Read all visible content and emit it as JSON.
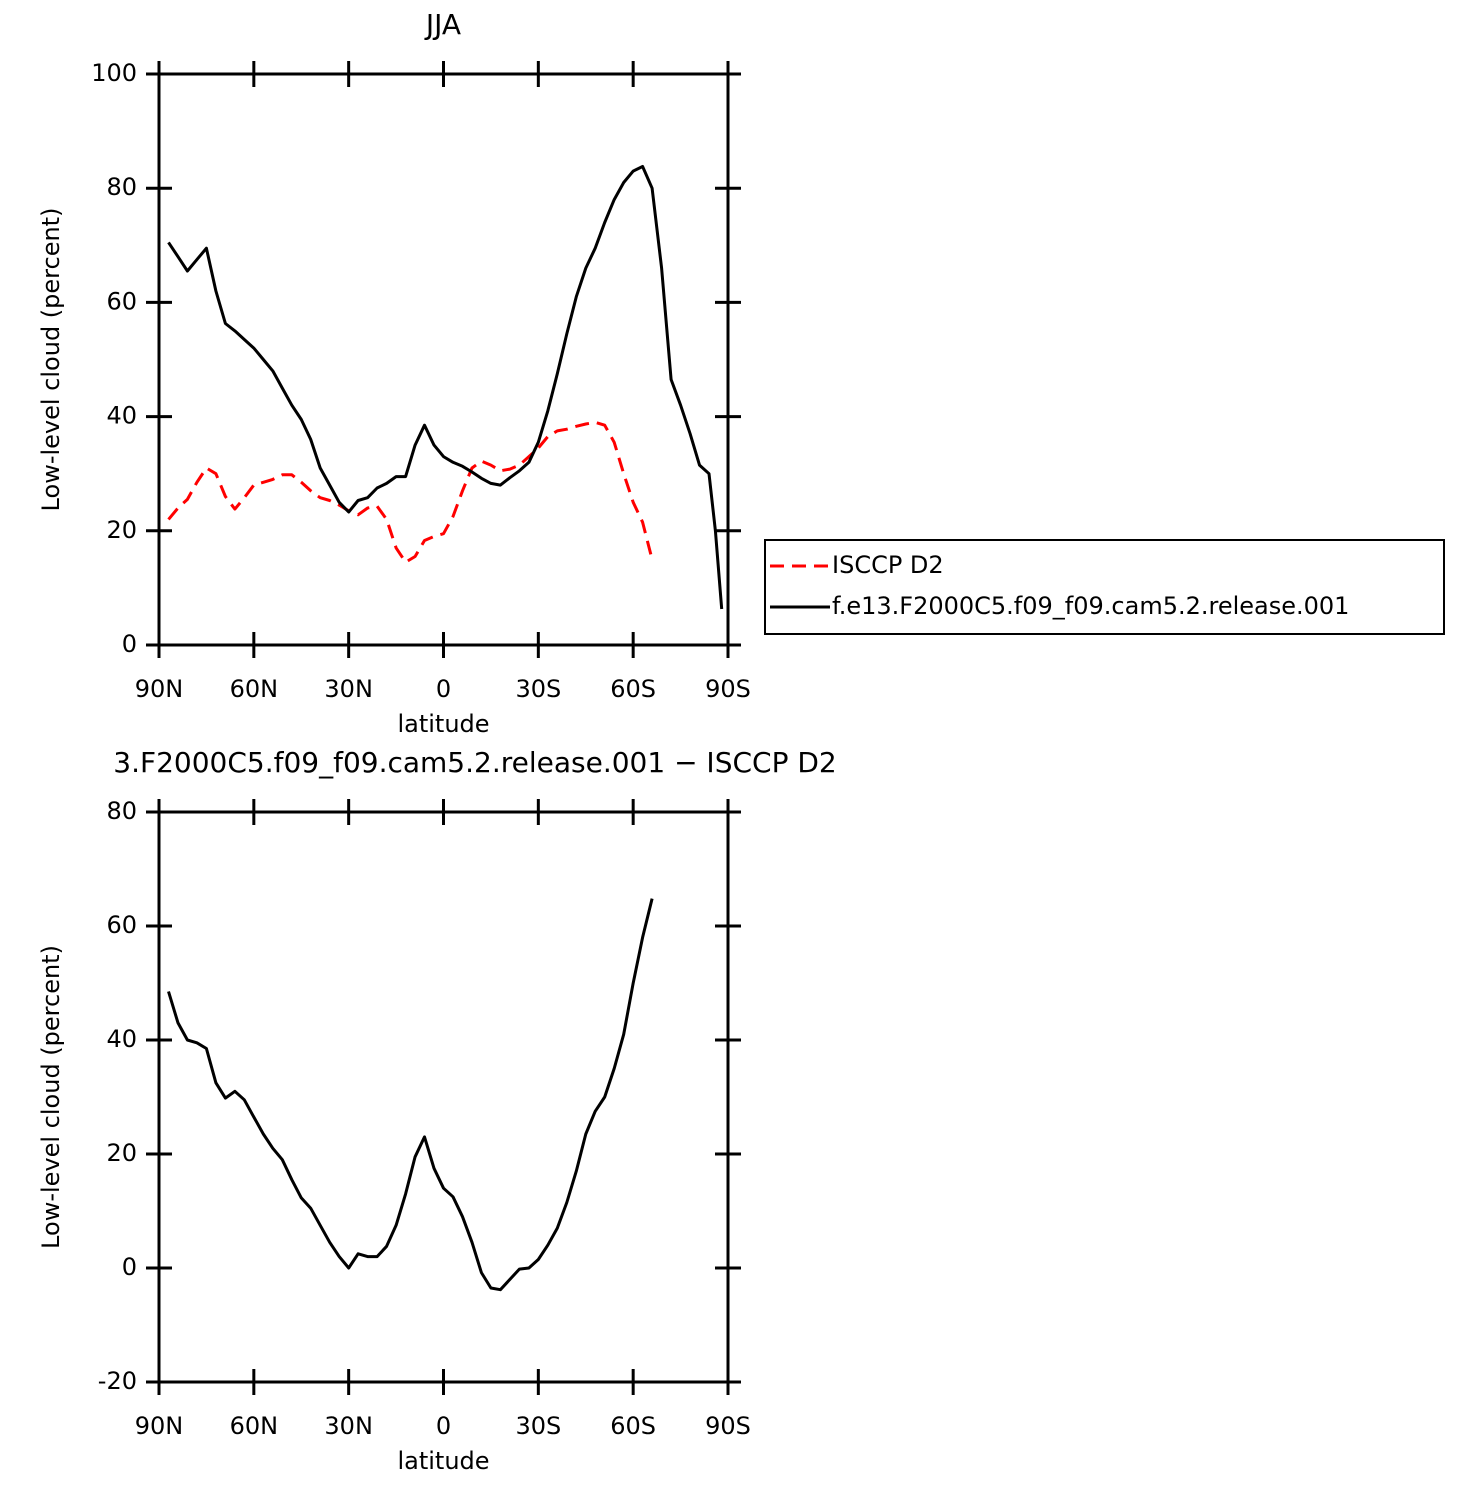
{
  "chart_data": [
    {
      "type": "line",
      "title": "JJA",
      "xlabel": "latitude",
      "ylabel": "Low-level cloud (percent)",
      "x": [
        87,
        84,
        81,
        78,
        75,
        72,
        69,
        66,
        63,
        60,
        57,
        54,
        51,
        48,
        45,
        42,
        39,
        36,
        33,
        30,
        27,
        24,
        21,
        18,
        15,
        12,
        9,
        6,
        3,
        0,
        -3,
        -6,
        -9,
        -12,
        -15,
        -18,
        -21,
        -24,
        -27,
        -30,
        -33,
        -36,
        -39,
        -42,
        -45,
        -48,
        -51,
        -54,
        -57,
        -60,
        -63,
        -66,
        -69,
        -72,
        -75,
        -78,
        -81,
        -84,
        -86,
        -88
      ],
      "xlim": [
        90,
        -90
      ],
      "xticks": [
        {
          "value": 90,
          "label": "90N"
        },
        {
          "value": 60,
          "label": "60N"
        },
        {
          "value": 30,
          "label": "30N"
        },
        0,
        {
          "value": -30,
          "label": "30S"
        },
        {
          "value": -60,
          "label": "60S"
        },
        {
          "value": -90,
          "label": "90S"
        }
      ],
      "ylim": [
        0,
        100
      ],
      "yticks": [
        0,
        20,
        40,
        60,
        80,
        100
      ],
      "legend": "right",
      "series": [
        {
          "name": "ISCCP D2",
          "color": "#ff0000",
          "dashed": true,
          "values": [
            22,
            24,
            25.5,
            28.5,
            31,
            30,
            26,
            23.8,
            25.8,
            28,
            28.5,
            29,
            29.8,
            29.8,
            28.5,
            27,
            25.8,
            25.3,
            24.5,
            23.5,
            22.8,
            24,
            24.3,
            22,
            17,
            14.5,
            15.5,
            18.3,
            19,
            19.5,
            22.5,
            27,
            31,
            32.2,
            31.5,
            30.5,
            30.8,
            31.5,
            33,
            34.5,
            36.5,
            37.5,
            37.8,
            38.3,
            38.7,
            39,
            38.5,
            35.5,
            30,
            25,
            21.5,
            15,
            null,
            null,
            null,
            null,
            null,
            null,
            null,
            null
          ]
        },
        {
          "name": "f.e13.F2000C5.f09_f09.cam5.2.release.001",
          "color": "#000000",
          "dashed": false,
          "values": [
            70.5,
            68,
            65.5,
            67.5,
            69.5,
            62,
            56.3,
            55,
            53.5,
            52,
            50,
            48,
            45,
            42,
            39.5,
            36,
            31,
            28,
            25,
            23.3,
            25.3,
            25.8,
            27.5,
            28.3,
            29.5,
            29.5,
            35,
            38.5,
            35,
            33,
            32,
            31.3,
            30.3,
            29.2,
            28.3,
            28,
            29.3,
            30.5,
            32,
            35.5,
            41,
            47.5,
            54.5,
            61,
            66,
            69.5,
            74,
            78,
            81,
            83,
            83.8,
            80,
            66,
            46.5,
            42,
            37,
            31.5,
            30,
            20,
            6.3
          ]
        }
      ]
    },
    {
      "type": "line",
      "title": "3.F2000C5.f09_f09.cam5.2.release.001 − ISCCP D2",
      "xlabel": "latitude",
      "ylabel": "Low-level cloud (percent)",
      "x": [
        87,
        84,
        81,
        78,
        75,
        72,
        69,
        66,
        63,
        60,
        57,
        54,
        51,
        48,
        45,
        42,
        39,
        36,
        33,
        30,
        27,
        24,
        21,
        18,
        15,
        12,
        9,
        6,
        3,
        0,
        -3,
        -6,
        -9,
        -12,
        -15,
        -18,
        -21,
        -24,
        -27,
        -30,
        -33,
        -36,
        -39,
        -42,
        -45,
        -48,
        -51,
        -54,
        -57,
        -60,
        -63,
        -66
      ],
      "xlim": [
        90,
        -90
      ],
      "xticks": [
        {
          "value": 90,
          "label": "90N"
        },
        {
          "value": 60,
          "label": "60N"
        },
        {
          "value": 30,
          "label": "30N"
        },
        0,
        {
          "value": -30,
          "label": "30S"
        },
        {
          "value": -60,
          "label": "60S"
        },
        {
          "value": -90,
          "label": "90S"
        }
      ],
      "ylim": [
        -20,
        80
      ],
      "yticks": [
        -20,
        0,
        20,
        40,
        60,
        80
      ],
      "color": "#000000",
      "values": [
        48.5,
        43,
        40,
        39.5,
        38.5,
        32.5,
        29.8,
        31,
        29.5,
        26.5,
        23.5,
        21,
        19,
        15.5,
        12.3,
        10.5,
        7.5,
        4.5,
        2,
        0,
        2.5,
        2,
        2,
        3.8,
        7.5,
        13,
        19.5,
        23,
        17.5,
        14,
        12.5,
        9,
        4.5,
        -0.8,
        -3.5,
        -3.8,
        -2,
        -0.2,
        0,
        1.5,
        4,
        7,
        11.5,
        17,
        23.5,
        27.5,
        30,
        35,
        41,
        50,
        58,
        64.8
      ]
    }
  ]
}
